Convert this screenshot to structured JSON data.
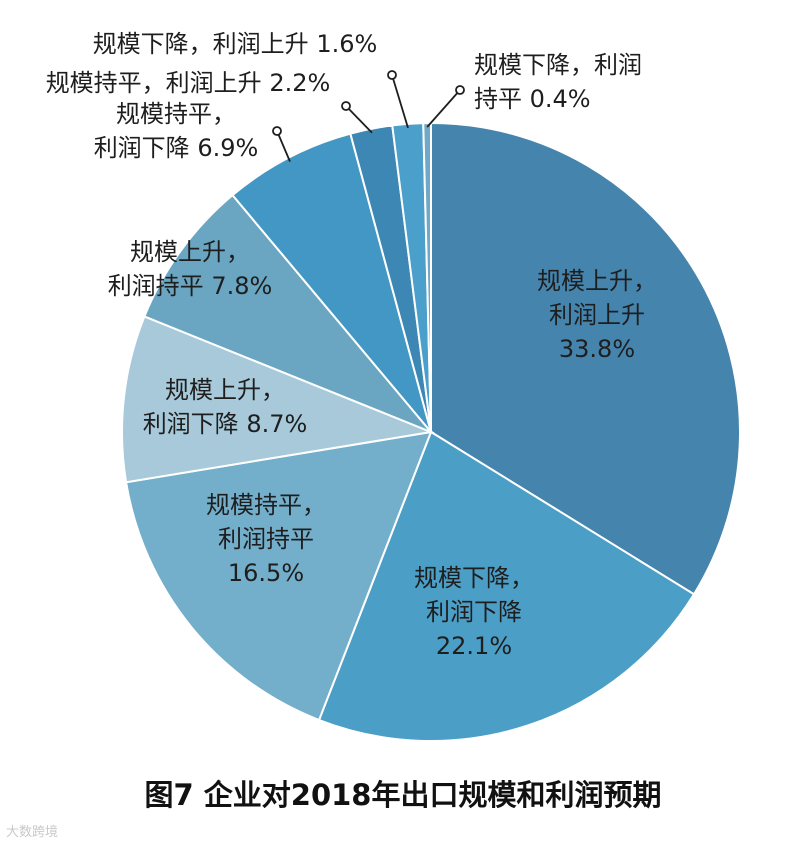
{
  "chart_data": {
    "type": "pie",
    "title": "图7  企业对2018年出口规模和利润预期",
    "start": "12 o'clock, clockwise",
    "slices": [
      {
        "label": [
          "规模上升，",
          "利润上升",
          "33.8%"
        ],
        "value": 33.8,
        "color": "#4584ad"
      },
      {
        "label": [
          "规模下降，",
          "利润下降",
          "22.1%"
        ],
        "value": 22.1,
        "color": "#4b9ec6"
      },
      {
        "label": [
          "规模持平，",
          "利润持平",
          "16.5%"
        ],
        "value": 16.5,
        "color": "#73aecb"
      },
      {
        "label": [
          "规模上升，",
          "利润下降 8.7%"
        ],
        "value": 8.7,
        "color": "#a7c9da"
      },
      {
        "label": [
          "规模上升，",
          "利润持平 7.8%"
        ],
        "value": 7.8,
        "color": "#6aa6c2"
      },
      {
        "label": [
          "规模持平，",
          "利润下降 6.9%"
        ],
        "value": 6.9,
        "color": "#4297c4"
      },
      {
        "label": [
          "规模持平，利润上升 2.2%"
        ],
        "value": 2.2,
        "color": "#3c87b4"
      },
      {
        "label": [
          "规模下降，利润上升 1.6%"
        ],
        "value": 1.6,
        "color": "#4a9fcb"
      },
      {
        "label": [
          "规模下降，利润",
          "持平 0.4%"
        ],
        "value": 0.4,
        "color": "#6fa9c7"
      }
    ]
  },
  "watermark": "大数跨境"
}
